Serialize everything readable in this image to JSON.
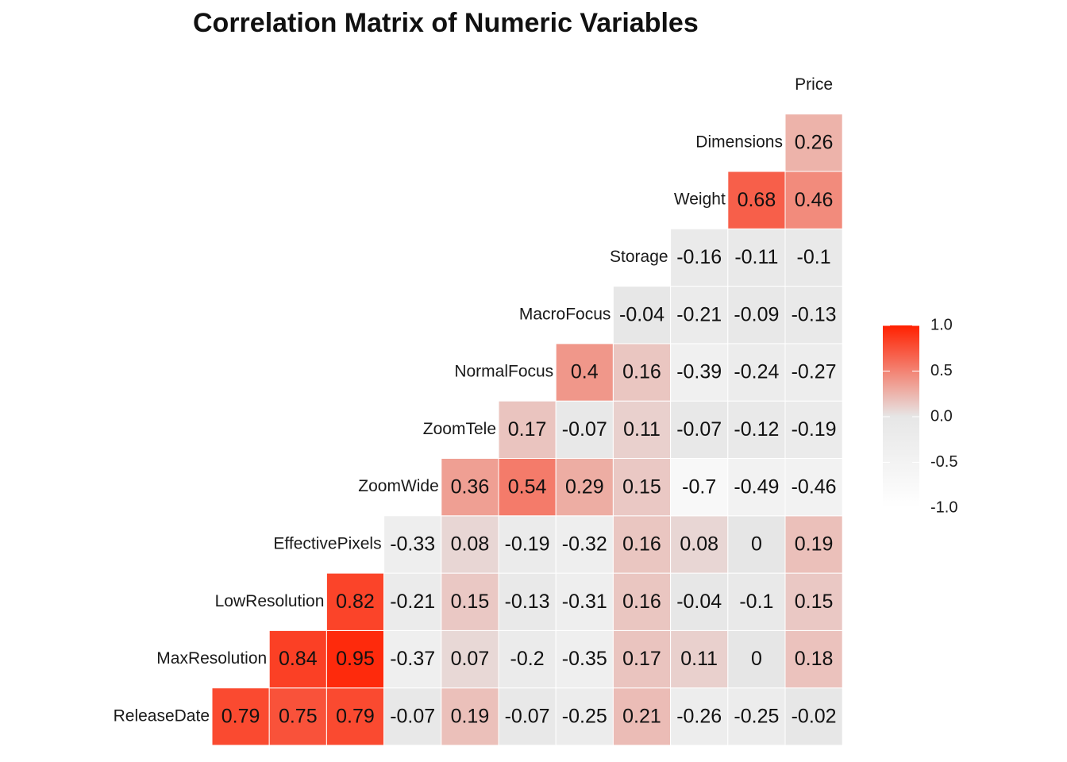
{
  "chart_data": {
    "type": "heatmap",
    "title": "Correlation Matrix of Numeric Variables",
    "variables": [
      "ReleaseDate",
      "MaxResolution",
      "LowResolution",
      "EffectivePixels",
      "ZoomWide",
      "ZoomTele",
      "NormalFocus",
      "MacroFocus",
      "Storage",
      "Weight",
      "Dimensions",
      "Price"
    ],
    "values": [
      [
        0.79,
        0.75,
        0.79,
        -0.07,
        0.19,
        -0.07,
        -0.25,
        0.21,
        -0.26,
        -0.25,
        -0.02
      ],
      [
        0.84,
        0.95,
        -0.37,
        0.07,
        -0.2,
        -0.35,
        0.17,
        0.11,
        0,
        0.18
      ],
      [
        0.82,
        -0.21,
        0.15,
        -0.13,
        -0.31,
        0.16,
        -0.04,
        -0.1,
        0.15
      ],
      [
        -0.33,
        0.08,
        -0.19,
        -0.32,
        0.16,
        0.08,
        0,
        0.19
      ],
      [
        0.36,
        0.54,
        0.29,
        0.15,
        -0.7,
        -0.49,
        -0.46
      ],
      [
        0.17,
        -0.07,
        0.11,
        -0.07,
        -0.12,
        -0.19
      ],
      [
        0.4,
        0.16,
        -0.39,
        -0.24,
        -0.27
      ],
      [
        -0.04,
        -0.21,
        -0.09,
        -0.13
      ],
      [
        -0.16,
        -0.11,
        -0.1
      ],
      [
        0.68,
        0.46
      ],
      [
        0.26
      ],
      []
    ],
    "colorscale": {
      "low": "#ffffff",
      "mid": "#e6e6e6",
      "high": "#ff2000"
    },
    "clim": [
      -1,
      1
    ],
    "cticks": [
      {
        "value": 1,
        "label": "1.0"
      },
      {
        "value": 0.5,
        "label": "0.5"
      },
      {
        "value": 0,
        "label": "0.0"
      },
      {
        "value": -0.5,
        "label": "-0.5"
      },
      {
        "value": -1,
        "label": "-1.0"
      }
    ]
  }
}
